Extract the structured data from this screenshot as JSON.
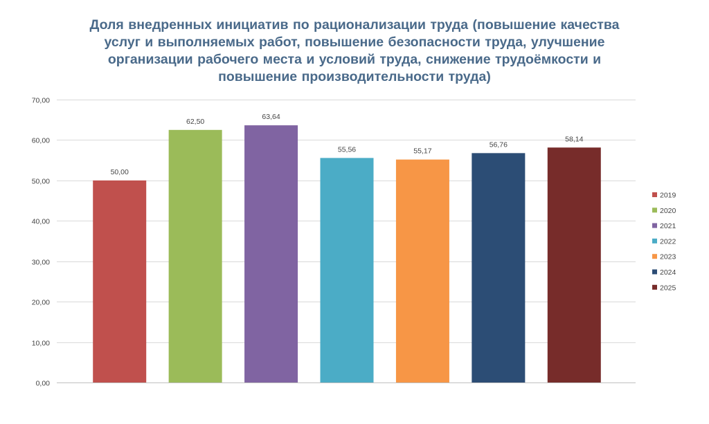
{
  "chart_data": {
    "type": "bar",
    "title": "Доля внедренных инициатив по рационализации труда (повышение качества услуг и выполняемых работ, повышение безопасности труда, улучшение организации рабочего места и условий труда, снижение трудоёмкости и повышение производительности труда)",
    "xlabel": "",
    "ylabel": "",
    "ylim": [
      0,
      70
    ],
    "y_ticks": [
      "0,00",
      "10,00",
      "20,00",
      "30,00",
      "40,00",
      "50,00",
      "60,00",
      "70,00"
    ],
    "grid": true,
    "legend_position": "right",
    "series": [
      {
        "name": "2019",
        "value": 50.0,
        "label": "50,00",
        "color": "#c0504d"
      },
      {
        "name": "2020",
        "value": 62.5,
        "label": "62,50",
        "color": "#9bbb59"
      },
      {
        "name": "2021",
        "value": 63.64,
        "label": "63,64",
        "color": "#8064a2"
      },
      {
        "name": "2022",
        "value": 55.56,
        "label": "55,56",
        "color": "#4bacc6"
      },
      {
        "name": "2023",
        "value": 55.17,
        "label": "55,17",
        "color": "#f79646"
      },
      {
        "name": "2024",
        "value": 56.76,
        "label": "56,76",
        "color": "#2c4d75"
      },
      {
        "name": "2025",
        "value": 58.14,
        "label": "58,14",
        "color": "#772c2a"
      }
    ]
  }
}
